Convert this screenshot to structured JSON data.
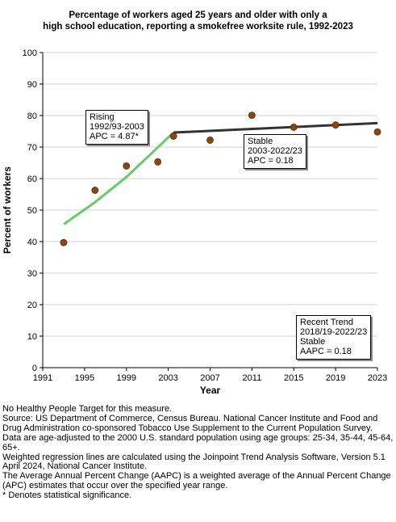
{
  "chart_data": {
    "type": "scatter",
    "title": [
      "Percentage of workers aged 25 years and older with only a",
      "high school education, reporting a smokefree worksite rule, 1992-2023"
    ],
    "xlabel": "Year",
    "ylabel": "Percent of workers",
    "xlim": [
      1991,
      2023
    ],
    "ylim": [
      0,
      100
    ],
    "xticks": [
      1991,
      1995,
      1999,
      2003,
      2007,
      2011,
      2015,
      2019,
      2023
    ],
    "yticks": [
      0,
      10,
      20,
      30,
      40,
      50,
      60,
      70,
      80,
      90,
      100
    ],
    "grid": "horizontal",
    "observed": {
      "x": [
        1993,
        1996,
        1999,
        2002,
        2003.5,
        2007,
        2011,
        2015,
        2019,
        2023
      ],
      "y": [
        39.7,
        56.3,
        64.0,
        65.3,
        73.5,
        72.2,
        80.1,
        76.3,
        77.0,
        74.8
      ],
      "color": "#8b4513"
    },
    "trend_segments": [
      {
        "x": [
          1993,
          1996,
          1999,
          2003.5
        ],
        "y": [
          45.5,
          52.5,
          60.5,
          74.6
        ],
        "color": "#66cc66"
      },
      {
        "x": [
          2003.5,
          2023
        ],
        "y": [
          74.6,
          77.6
        ],
        "color": "#333333"
      }
    ],
    "annotations": [
      {
        "lines": [
          "Rising",
          "1992/93-2003",
          "APC =  4.87*"
        ]
      },
      {
        "lines": [
          "Stable",
          "2003-2022/23",
          "APC =  0.18"
        ]
      },
      {
        "lines": [
          "Recent Trend",
          "2018/19-2022/23",
          "Stable",
          "AAPC =  0.18"
        ]
      }
    ]
  },
  "footnotes": [
    "No Healthy People Target for this measure.",
    "Source: US Department of Commerce, Census Bureau. National Cancer Institute and Food and Drug Administration co-sponsored Tobacco Use Supplement to the Current Population Survey.",
    "Data are age-adjusted to the 2000 U.S. standard population using age groups: 25-34, 35-44, 45-64, 65+.",
    "Weighted regression lines are calculated using the Joinpoint Trend Analysis Software, Version 5.1 April 2024, National Cancer Institute.",
    "The Average Annual Percent Change (AAPC) is a weighted average of the Annual Percent Change (APC) estimates that occur over the specified year range.",
    "* Denotes statistical significance."
  ]
}
